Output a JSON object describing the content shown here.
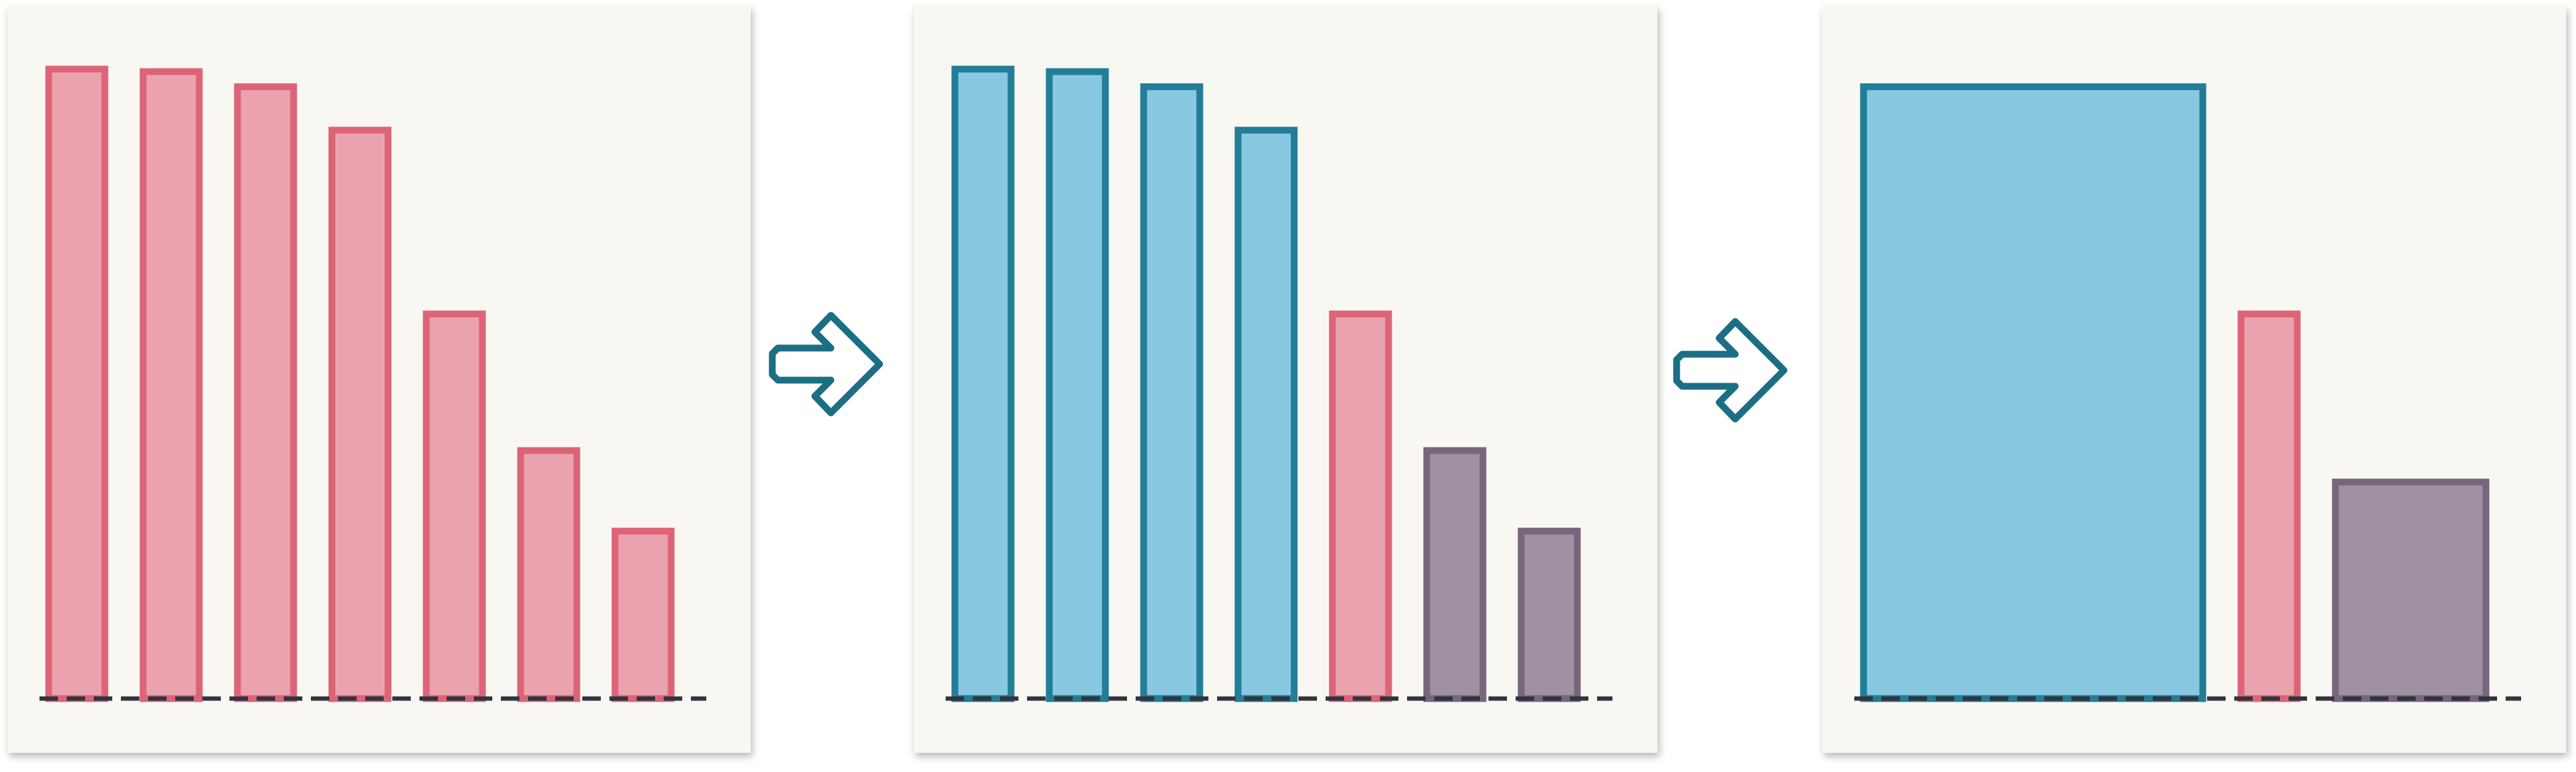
{
  "colors": {
    "panel_fill": "#f8f7f2",
    "pink_fill": "#eaa3ae",
    "pink_stroke": "#dd6477",
    "blue_fill": "#88c8e1",
    "blue_stroke": "#227d96",
    "purple_fill": "#9f91a2",
    "purple_stroke": "#78667c",
    "baseline": "#303440",
    "arrow_stroke": "#1c6e84"
  },
  "icons": [
    "right-arrow-icon",
    "right-arrow-icon"
  ],
  "panels": [
    {
      "name": "panel-original",
      "bars": [
        {
          "value": 1.0,
          "group": "pink"
        },
        {
          "value": 0.996,
          "group": "pink"
        },
        {
          "value": 0.972,
          "group": "pink"
        },
        {
          "value": 0.903,
          "group": "pink"
        },
        {
          "value": 0.611,
          "group": "pink"
        },
        {
          "value": 0.394,
          "group": "pink"
        },
        {
          "value": 0.266,
          "group": "pink"
        }
      ]
    },
    {
      "name": "panel-grouped",
      "bars": [
        {
          "value": 1.0,
          "group": "blue"
        },
        {
          "value": 0.996,
          "group": "blue"
        },
        {
          "value": 0.972,
          "group": "blue"
        },
        {
          "value": 0.903,
          "group": "blue"
        },
        {
          "value": 0.611,
          "group": "pink"
        },
        {
          "value": 0.394,
          "group": "purple"
        },
        {
          "value": 0.266,
          "group": "purple"
        }
      ]
    },
    {
      "name": "panel-merged",
      "bars": [
        {
          "value": 0.972,
          "group": "blue",
          "span": 4
        },
        {
          "value": 0.611,
          "group": "pink",
          "span": 1
        },
        {
          "value": 0.344,
          "group": "purple",
          "span": 2
        }
      ]
    }
  ]
}
